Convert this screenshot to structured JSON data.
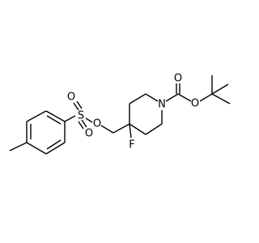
{
  "atoms": {
    "sulfonyl_oxygen_top": "O",
    "sulfur": "S",
    "sulfonyl_oxygen_bottom": "O",
    "ether_oxygen": "O",
    "fluorine": "F",
    "nitrogen": "N",
    "carbonyl_oxygen": "O",
    "ester_oxygen": "O"
  }
}
